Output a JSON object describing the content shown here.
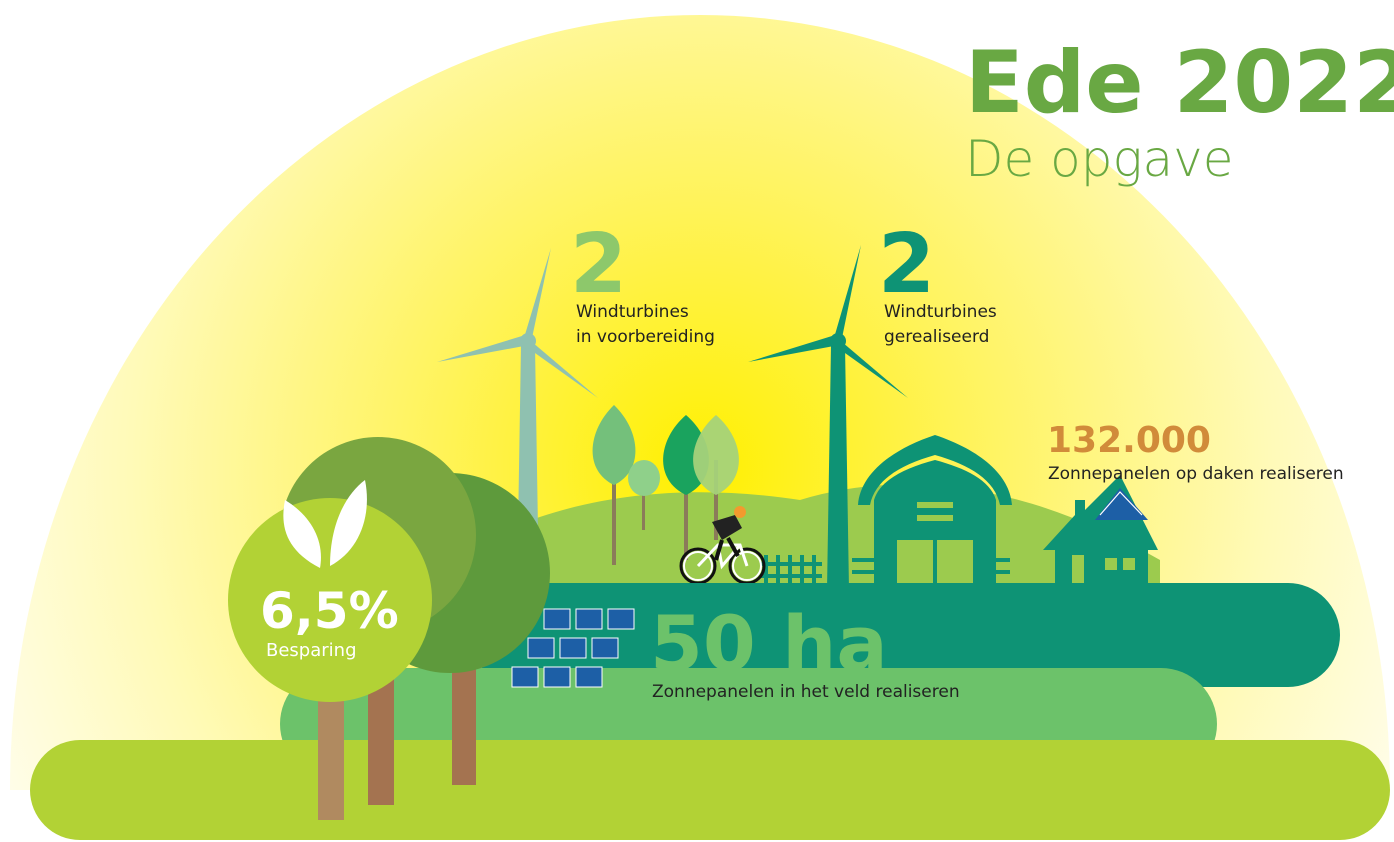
{
  "title": {
    "main": "Ede 2022",
    "sub": "De opgave"
  },
  "stats": [
    {
      "number": "2",
      "lines": [
        "Windturbines",
        "in voorbereiding"
      ]
    },
    {
      "number": "2",
      "lines": [
        "Windturbines",
        "gerealiseerd"
      ]
    },
    {
      "number": "132.000",
      "lines": [
        "Zonnepanelen op daken realiseren"
      ]
    },
    {
      "number": "50 ha",
      "lines": [
        "Zonnepanelen in het veld realiseren"
      ]
    },
    {
      "number": "6,5%",
      "lines": [
        "Besparing"
      ]
    }
  ]
}
